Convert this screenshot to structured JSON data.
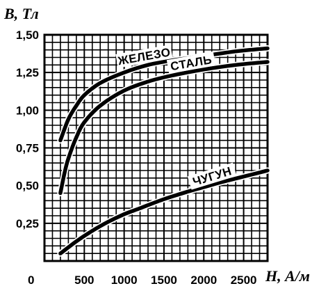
{
  "chart_data": {
    "type": "line",
    "ylabel": "B, Тл",
    "xlabel": "H, А/м",
    "origin_label": "0",
    "x_ticks": [
      "500",
      "1000",
      "1500",
      "2000",
      "2500"
    ],
    "y_ticks": [
      "0,25",
      "0,50",
      "0,75",
      "1,00",
      "1,25",
      "1,50"
    ],
    "xlim": [
      0,
      2800
    ],
    "ylim": [
      0,
      1.5
    ],
    "grid": true,
    "series": [
      {
        "name": "ЖЕЛЕЗО",
        "x": [
          200,
          300,
          400,
          500,
          700,
          1000,
          1300,
          1600,
          2000,
          2400,
          2800
        ],
        "y": [
          0.8,
          0.94,
          1.03,
          1.1,
          1.18,
          1.25,
          1.3,
          1.33,
          1.36,
          1.39,
          1.41
        ]
      },
      {
        "name": "СТАЛЬ",
        "x": [
          200,
          250,
          300,
          400,
          500,
          700,
          1000,
          1300,
          1600,
          2000,
          2400,
          2800
        ],
        "y": [
          0.45,
          0.58,
          0.68,
          0.82,
          0.92,
          1.03,
          1.13,
          1.19,
          1.23,
          1.27,
          1.3,
          1.32
        ]
      },
      {
        "name": "ЧУГУН",
        "x": [
          200,
          400,
          600,
          800,
          1000,
          1200,
          1500,
          1800,
          2000,
          2200,
          2500,
          2800
        ],
        "y": [
          0.05,
          0.13,
          0.2,
          0.26,
          0.31,
          0.35,
          0.41,
          0.46,
          0.49,
          0.52,
          0.56,
          0.6
        ]
      }
    ]
  }
}
